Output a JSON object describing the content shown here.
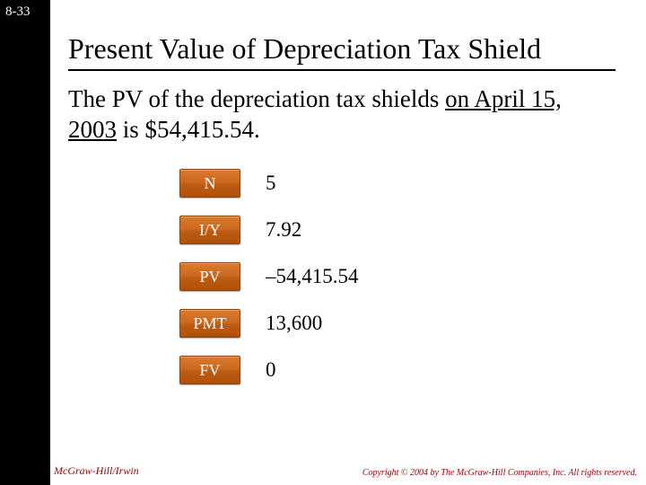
{
  "page_number": "8-33",
  "title": "Present Value of Depreciation Tax Shield",
  "body": {
    "prefix": "The PV of the depreciation tax shields ",
    "underlined": "on April 15, 2003",
    "suffix": " is $54,415.54."
  },
  "calculator": {
    "rows": [
      {
        "key": "N",
        "value": "5"
      },
      {
        "key": "I/Y",
        "value": "7.92"
      },
      {
        "key": "PV",
        "value": "–54,415.54"
      },
      {
        "key": "PMT",
        "value": "13,600"
      },
      {
        "key": "FV",
        "value": "0"
      }
    ],
    "key_bg_gradient": [
      "#d97a2e",
      "#b0500a"
    ],
    "key_text_color": "#ffffff"
  },
  "footer": {
    "left": "McGraw-Hill/Irwin",
    "right": "Copyright © 2004 by The McGraw-Hill Companies, Inc. All rights reserved."
  },
  "colors": {
    "sidebar": "#000000",
    "background": "#ffffff",
    "title_color": "#000000",
    "footer_color": "#990000"
  }
}
